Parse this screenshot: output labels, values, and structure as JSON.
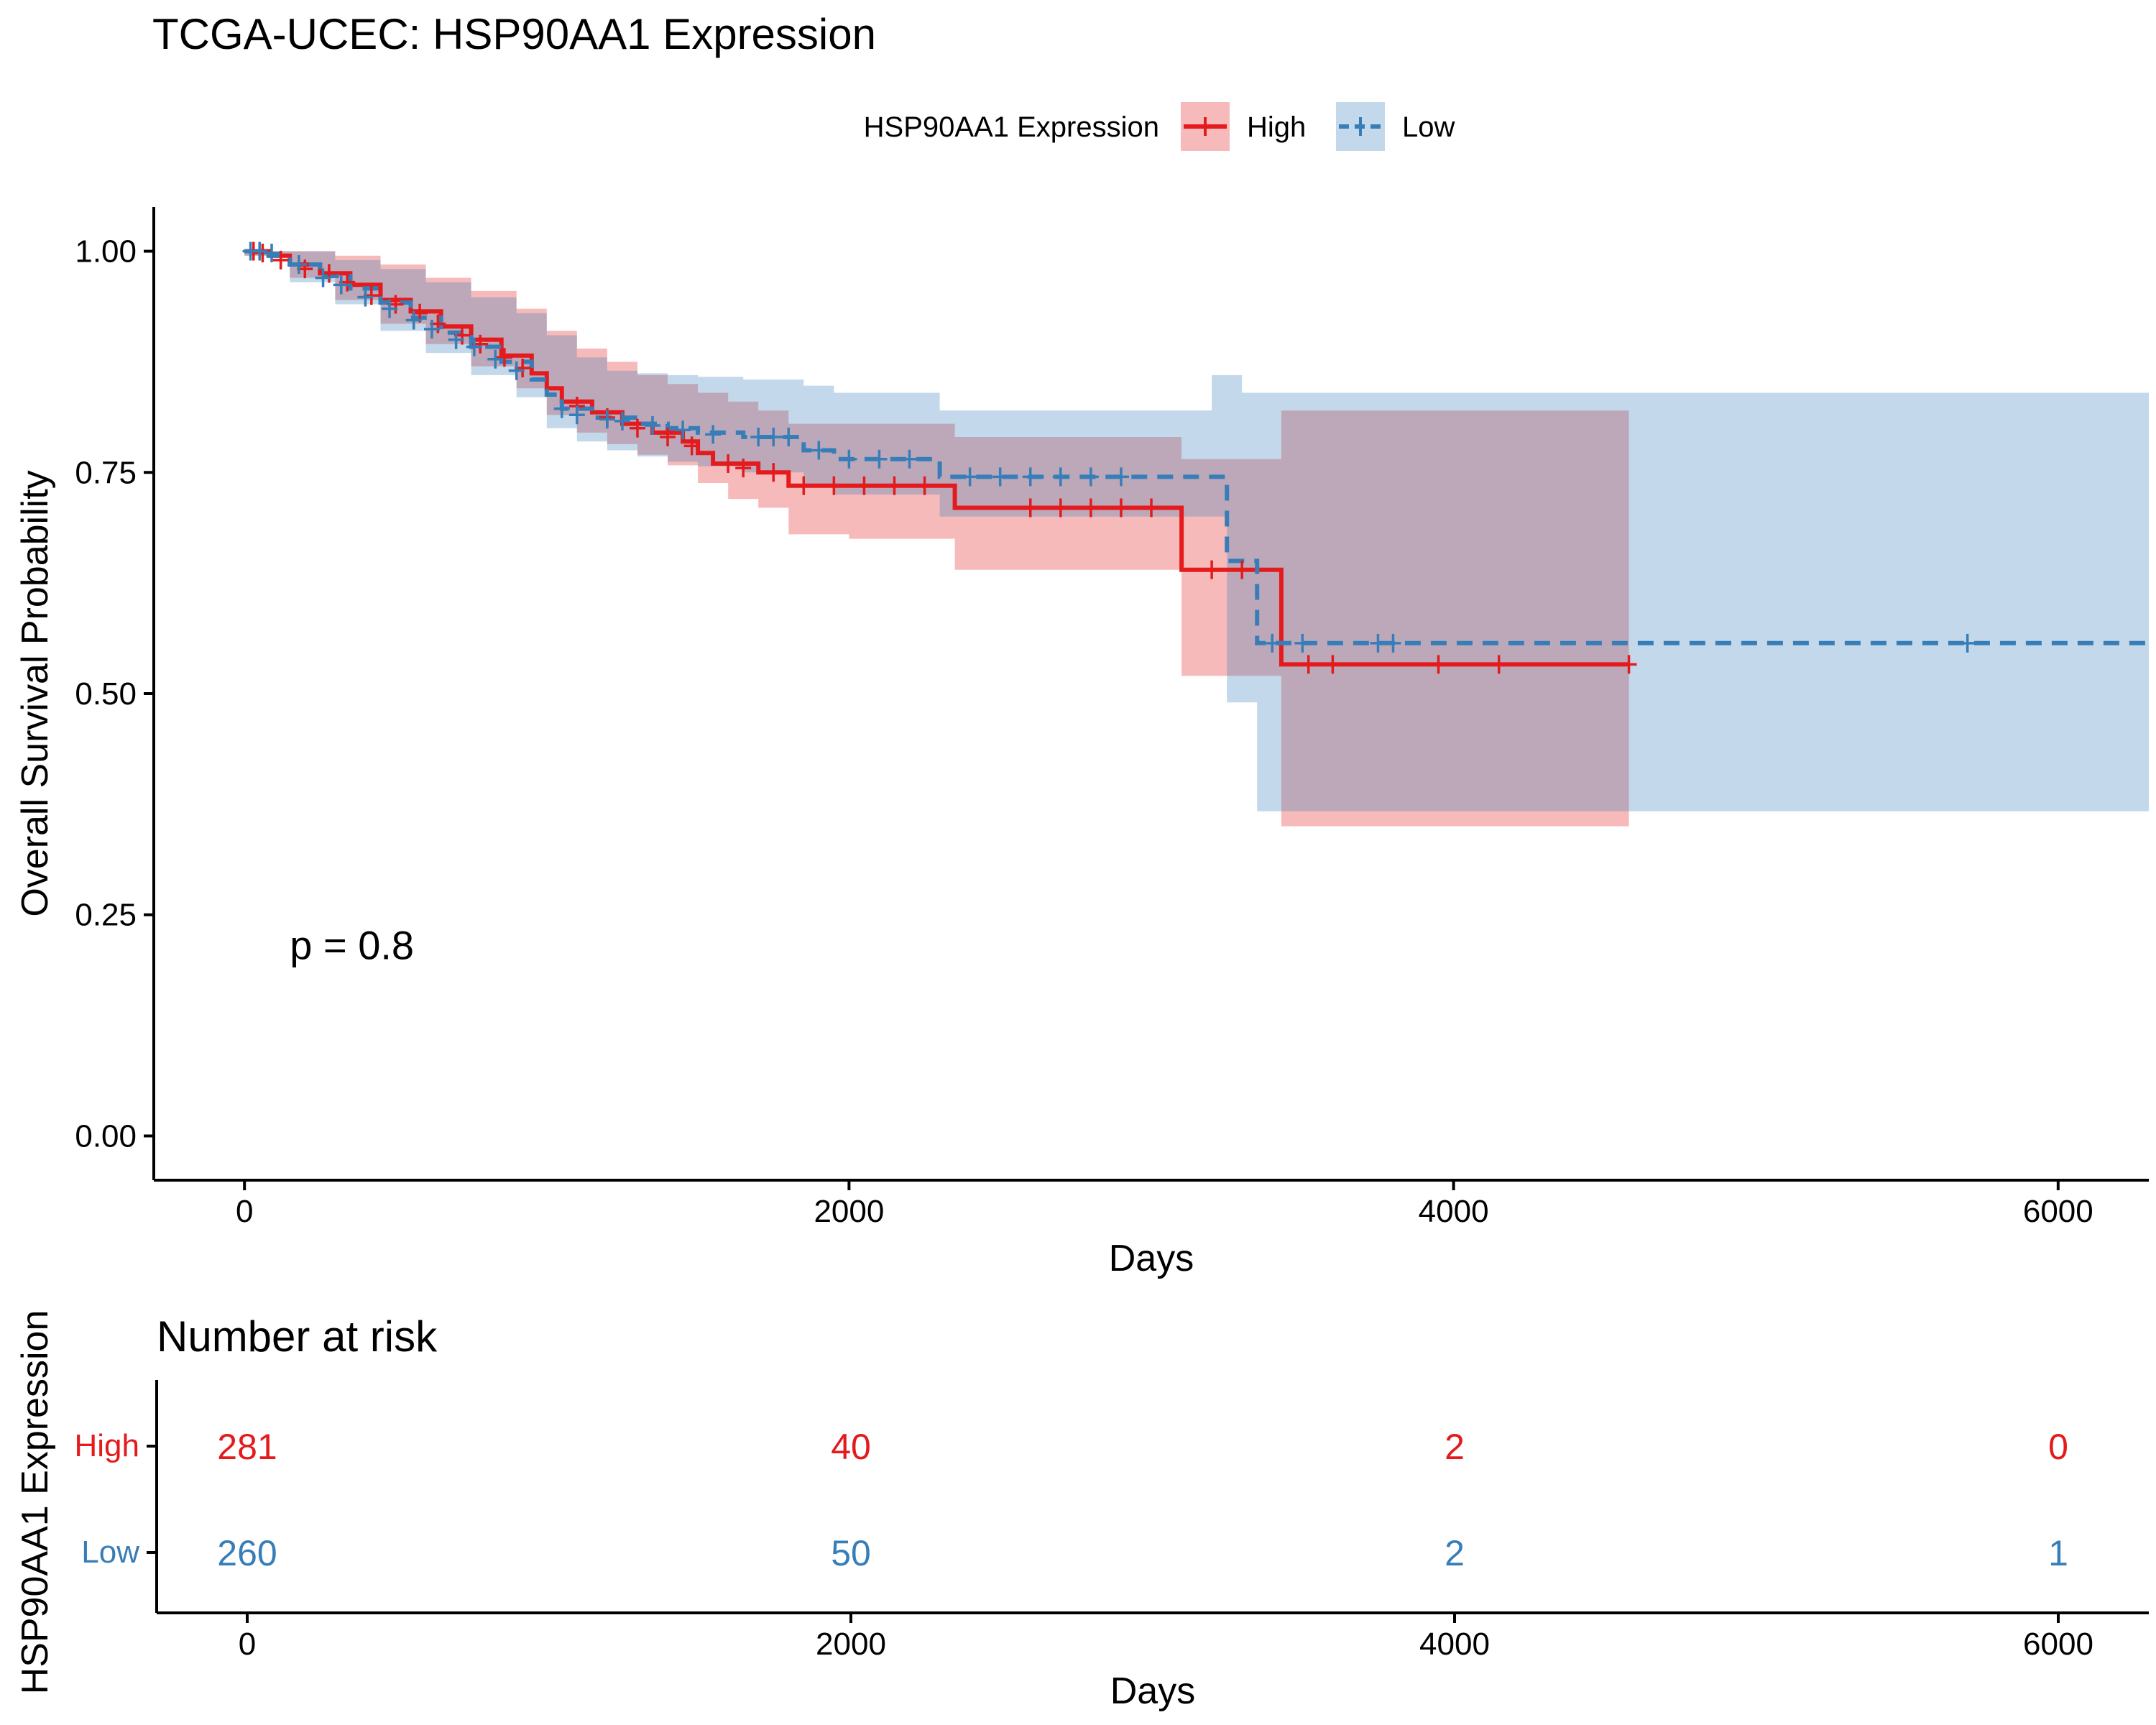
{
  "chart_data": {
    "type": "line",
    "title": "TCGA-UCEC: HSP90AA1 Expression",
    "legend": {
      "title": "HSP90AA1 Expression",
      "position": "top",
      "entries": [
        "High",
        "Low"
      ]
    },
    "xlabel": "Days",
    "ylabel": "Overall Survival Probability",
    "xlim": [
      -300,
      6300
    ],
    "ylim": [
      -0.05,
      1.05
    ],
    "xticks": [
      0,
      2000,
      4000,
      6000
    ],
    "yticks": [
      0.0,
      0.25,
      0.5,
      0.75,
      1.0
    ],
    "ytick_labels": [
      "0.00",
      "0.25",
      "0.50",
      "0.75",
      "1.00"
    ],
    "grid": false,
    "annotation": "p = 0.8",
    "annotation_at": {
      "x": 150,
      "y": 0.2
    },
    "series": [
      {
        "name": "High",
        "color": "#E41A1C",
        "line_style": "solid",
        "curve": [
          [
            0,
            1.0
          ],
          [
            80,
            0.995
          ],
          [
            150,
            0.985
          ],
          [
            250,
            0.975
          ],
          [
            350,
            0.962
          ],
          [
            450,
            0.945
          ],
          [
            550,
            0.932
          ],
          [
            650,
            0.915
          ],
          [
            750,
            0.9
          ],
          [
            850,
            0.882
          ],
          [
            950,
            0.862
          ],
          [
            1000,
            0.845
          ],
          [
            1050,
            0.83
          ],
          [
            1150,
            0.818
          ],
          [
            1250,
            0.805
          ],
          [
            1350,
            0.795
          ],
          [
            1450,
            0.785
          ],
          [
            1500,
            0.772
          ],
          [
            1550,
            0.76
          ],
          [
            1700,
            0.75
          ],
          [
            1800,
            0.735
          ],
          [
            2350,
            0.71
          ],
          [
            3100,
            0.64
          ],
          [
            3430,
            0.533
          ],
          [
            4580,
            0.533
          ]
        ],
        "ci_lower": [
          [
            0,
            0.995
          ],
          [
            150,
            0.97
          ],
          [
            300,
            0.945
          ],
          [
            450,
            0.918
          ],
          [
            600,
            0.895
          ],
          [
            750,
            0.87
          ],
          [
            900,
            0.845
          ],
          [
            1000,
            0.815
          ],
          [
            1100,
            0.795
          ],
          [
            1200,
            0.782
          ],
          [
            1300,
            0.77
          ],
          [
            1400,
            0.758
          ],
          [
            1500,
            0.738
          ],
          [
            1600,
            0.72
          ],
          [
            1700,
            0.71
          ],
          [
            1800,
            0.68
          ],
          [
            2000,
            0.675
          ],
          [
            2200,
            0.675
          ],
          [
            2350,
            0.64
          ],
          [
            3100,
            0.52
          ],
          [
            3430,
            0.35
          ],
          [
            4580,
            0.35
          ]
        ],
        "ci_upper": [
          [
            0,
            1.0
          ],
          [
            300,
            0.995
          ],
          [
            450,
            0.985
          ],
          [
            600,
            0.97
          ],
          [
            750,
            0.955
          ],
          [
            900,
            0.935
          ],
          [
            1000,
            0.91
          ],
          [
            1100,
            0.89
          ],
          [
            1200,
            0.875
          ],
          [
            1300,
            0.86
          ],
          [
            1400,
            0.85
          ],
          [
            1500,
            0.84
          ],
          [
            1600,
            0.83
          ],
          [
            1700,
            0.82
          ],
          [
            1800,
            0.805
          ],
          [
            2350,
            0.79
          ],
          [
            3100,
            0.765
          ],
          [
            3430,
            0.82
          ],
          [
            4580,
            0.82
          ]
        ],
        "censored": [
          [
            30,
            1.0
          ],
          [
            60,
            0.998
          ],
          [
            120,
            0.99
          ],
          [
            200,
            0.98
          ],
          [
            280,
            0.975
          ],
          [
            340,
            0.965
          ],
          [
            420,
            0.95
          ],
          [
            500,
            0.94
          ],
          [
            580,
            0.93
          ],
          [
            640,
            0.918
          ],
          [
            720,
            0.905
          ],
          [
            780,
            0.895
          ],
          [
            860,
            0.88
          ],
          [
            920,
            0.868
          ],
          [
            1100,
            0.825
          ],
          [
            1200,
            0.812
          ],
          [
            1300,
            0.8
          ],
          [
            1400,
            0.79
          ],
          [
            1480,
            0.78
          ],
          [
            1600,
            0.76
          ],
          [
            1650,
            0.755
          ],
          [
            1750,
            0.75
          ],
          [
            1850,
            0.735
          ],
          [
            1950,
            0.735
          ],
          [
            2050,
            0.735
          ],
          [
            2150,
            0.735
          ],
          [
            2250,
            0.735
          ],
          [
            2600,
            0.71
          ],
          [
            2700,
            0.71
          ],
          [
            2800,
            0.71
          ],
          [
            2900,
            0.71
          ],
          [
            3000,
            0.71
          ],
          [
            3200,
            0.64
          ],
          [
            3300,
            0.64
          ],
          [
            3520,
            0.533
          ],
          [
            3600,
            0.533
          ],
          [
            3950,
            0.533
          ],
          [
            4150,
            0.533
          ],
          [
            4580,
            0.533
          ]
        ]
      },
      {
        "name": "Low",
        "color": "#377EB8",
        "line_style": "dashed",
        "curve": [
          [
            0,
            1.0
          ],
          [
            80,
            0.995
          ],
          [
            150,
            0.985
          ],
          [
            250,
            0.972
          ],
          [
            350,
            0.958
          ],
          [
            450,
            0.942
          ],
          [
            550,
            0.925
          ],
          [
            650,
            0.908
          ],
          [
            750,
            0.892
          ],
          [
            850,
            0.875
          ],
          [
            950,
            0.855
          ],
          [
            1000,
            0.838
          ],
          [
            1050,
            0.822
          ],
          [
            1150,
            0.812
          ],
          [
            1300,
            0.805
          ],
          [
            1400,
            0.8
          ],
          [
            1500,
            0.795
          ],
          [
            1650,
            0.79
          ],
          [
            1850,
            0.775
          ],
          [
            1950,
            0.765
          ],
          [
            2300,
            0.745
          ],
          [
            3250,
            0.65
          ],
          [
            3350,
            0.557
          ],
          [
            6300,
            0.557
          ]
        ],
        "ci_lower": [
          [
            0,
            0.995
          ],
          [
            150,
            0.965
          ],
          [
            300,
            0.94
          ],
          [
            450,
            0.91
          ],
          [
            600,
            0.885
          ],
          [
            750,
            0.86
          ],
          [
            900,
            0.835
          ],
          [
            1000,
            0.8
          ],
          [
            1100,
            0.785
          ],
          [
            1200,
            0.775
          ],
          [
            1300,
            0.768
          ],
          [
            1400,
            0.762
          ],
          [
            1500,
            0.757
          ],
          [
            1650,
            0.75
          ],
          [
            1850,
            0.735
          ],
          [
            1950,
            0.725
          ],
          [
            2300,
            0.7
          ],
          [
            3250,
            0.49
          ],
          [
            3350,
            0.367
          ],
          [
            6300,
            0.367
          ]
        ],
        "ci_upper": [
          [
            0,
            1.0
          ],
          [
            300,
            0.99
          ],
          [
            450,
            0.98
          ],
          [
            600,
            0.965
          ],
          [
            750,
            0.948
          ],
          [
            900,
            0.93
          ],
          [
            1000,
            0.905
          ],
          [
            1100,
            0.88
          ],
          [
            1200,
            0.865
          ],
          [
            1300,
            0.862
          ],
          [
            1400,
            0.86
          ],
          [
            1500,
            0.858
          ],
          [
            1650,
            0.855
          ],
          [
            1850,
            0.848
          ],
          [
            1950,
            0.84
          ],
          [
            2300,
            0.82
          ],
          [
            3100,
            0.82
          ],
          [
            3200,
            0.86
          ],
          [
            3300,
            0.84
          ],
          [
            6300,
            0.84
          ]
        ],
        "censored": [
          [
            20,
            1.0
          ],
          [
            50,
            1.0
          ],
          [
            90,
            0.998
          ],
          [
            180,
            0.985
          ],
          [
            260,
            0.97
          ],
          [
            320,
            0.962
          ],
          [
            400,
            0.948
          ],
          [
            480,
            0.935
          ],
          [
            560,
            0.922
          ],
          [
            620,
            0.912
          ],
          [
            700,
            0.9
          ],
          [
            760,
            0.892
          ],
          [
            830,
            0.878
          ],
          [
            900,
            0.865
          ],
          [
            1050,
            0.822
          ],
          [
            1100,
            0.815
          ],
          [
            1200,
            0.81
          ],
          [
            1250,
            0.808
          ],
          [
            1350,
            0.803
          ],
          [
            1450,
            0.798
          ],
          [
            1550,
            0.793
          ],
          [
            1700,
            0.79
          ],
          [
            1750,
            0.79
          ],
          [
            1800,
            0.79
          ],
          [
            1900,
            0.775
          ],
          [
            2000,
            0.765
          ],
          [
            2100,
            0.765
          ],
          [
            2200,
            0.765
          ],
          [
            2400,
            0.745
          ],
          [
            2500,
            0.745
          ],
          [
            2600,
            0.745
          ],
          [
            2700,
            0.745
          ],
          [
            2800,
            0.745
          ],
          [
            2900,
            0.745
          ],
          [
            3400,
            0.557
          ],
          [
            3500,
            0.557
          ],
          [
            3750,
            0.557
          ],
          [
            3800,
            0.557
          ],
          [
            5700,
            0.557
          ]
        ]
      }
    ],
    "risk_table": {
      "title": "Number at risk",
      "ylabel": "HSP90AA1 Expression",
      "xlabel": "Days",
      "time_points": [
        0,
        2000,
        4000,
        6000
      ],
      "rows": [
        {
          "name": "High",
          "color": "#E41A1C",
          "counts": [
            "281",
            "40",
            "2",
            "0"
          ]
        },
        {
          "name": "Low",
          "color": "#377EB8",
          "counts": [
            "260",
            "50",
            "2",
            "1"
          ]
        }
      ]
    }
  }
}
